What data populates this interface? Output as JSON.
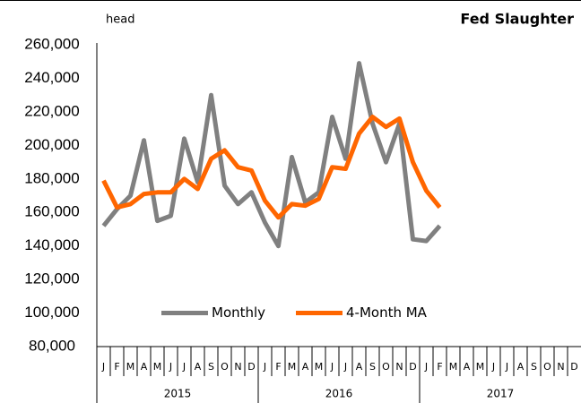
{
  "chart_data": {
    "type": "line",
    "title": "Fed Slaughter",
    "y_label": "head",
    "categories": [
      "J",
      "F",
      "M",
      "A",
      "M",
      "J",
      "J",
      "A",
      "S",
      "O",
      "N",
      "D",
      "J",
      "F",
      "M",
      "A",
      "M",
      "J",
      "J",
      "A",
      "S",
      "O",
      "N",
      "D",
      "J",
      "F",
      "M",
      "A",
      "M",
      "J",
      "J",
      "A",
      "S",
      "O",
      "N",
      "D"
    ],
    "year_labels": [
      "2015",
      "2016",
      "2017"
    ],
    "series": [
      {
        "name": "Monthly",
        "color": "#808080",
        "values": [
          152000,
          162000,
          170000,
          203000,
          155000,
          158000,
          204000,
          178000,
          230000,
          176000,
          165000,
          172000,
          154000,
          140000,
          193000,
          166000,
          172000,
          217000,
          192000,
          249000,
          213000,
          190000,
          213000,
          144000,
          143000,
          152000,
          null,
          null,
          null,
          null,
          null,
          null,
          null,
          null,
          null,
          null
        ]
      },
      {
        "name": "4-Month MA",
        "color": "#ff6600",
        "values": [
          179000,
          163000,
          165000,
          171000,
          172000,
          172000,
          180000,
          174000,
          192000,
          197000,
          187000,
          185000,
          167000,
          157000,
          165000,
          164000,
          168000,
          187000,
          186000,
          207000,
          217000,
          211000,
          216000,
          190000,
          173000,
          163000,
          null,
          null,
          null,
          null,
          null,
          null,
          null,
          null,
          null,
          null
        ]
      }
    ],
    "ylim": [
      80000,
      260000
    ],
    "yticks": [
      {
        "value": 80000,
        "label": "80,000"
      },
      {
        "value": 100000,
        "label": "100,000"
      },
      {
        "value": 120000,
        "label": "120,000"
      },
      {
        "value": 140000,
        "label": "140,000"
      },
      {
        "value": 160000,
        "label": "160,000"
      },
      {
        "value": 180000,
        "label": "180,000"
      },
      {
        "value": 200000,
        "label": "200,000"
      },
      {
        "value": 220000,
        "label": "220,000"
      },
      {
        "value": 240000,
        "label": "240,000"
      },
      {
        "value": 260000,
        "label": "260,000"
      }
    ],
    "grid": false,
    "legend": "bottom"
  }
}
